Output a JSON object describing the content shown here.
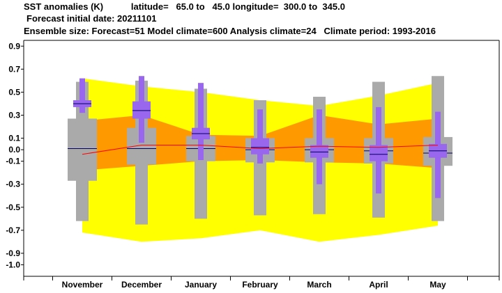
{
  "header": {
    "line1": "SST anomalies (K)           latitude=   65.0 to   45.0 longitude=  300.0 to  345.0",
    "line2": "Forecast initial date: 20211101",
    "line3": "Ensemble size: Forecast=51 Model climate=600 Analysis climate=24   Climate period: 1993-2016"
  },
  "colors": {
    "climate_outer": "#ffff00",
    "climate_inner": "#ff9900",
    "forecast_box": "#9966ee",
    "model_box": "#aaaaaa",
    "median_line": "#000066",
    "analysis_line": "#ff0000"
  },
  "chart_data": {
    "type": "box",
    "categories": [
      "November",
      "December",
      "January",
      "February",
      "March",
      "April",
      "May"
    ],
    "ylim": [
      -1.1,
      0.95
    ],
    "yticks": [
      "0.9",
      "0.7",
      "0.5",
      "0.3",
      "0.1",
      "0.0",
      "-0.1",
      "-0.3",
      "-0.5",
      "-0.7",
      "-0.9",
      "-1.0"
    ],
    "ytick_values": [
      0.9,
      0.7,
      0.5,
      0.3,
      0.1,
      0.0,
      -0.1,
      -0.3,
      -0.5,
      -0.7,
      -0.9,
      -1.0
    ],
    "climate_outer_band": {
      "upper": [
        0.62,
        0.55,
        0.5,
        0.43,
        0.38,
        0.47,
        0.58
      ],
      "lower": [
        -0.72,
        -0.8,
        -0.77,
        -0.7,
        -0.8,
        -0.74,
        -0.66
      ]
    },
    "climate_inner_band": {
      "upper": [
        0.25,
        0.3,
        0.13,
        0.12,
        0.3,
        0.22,
        0.27
      ],
      "lower": [
        -0.18,
        -0.14,
        -0.1,
        -0.09,
        -0.11,
        -0.12,
        -0.16
      ]
    },
    "analysis_line": [
      -0.04,
      0.04,
      0.04,
      0.01,
      0.03,
      0.02,
      0.04
    ],
    "model_climate": [
      {
        "whisker_low": -0.62,
        "q1": -0.27,
        "median": 0.01,
        "q3": 0.27,
        "whisker_high": 0.59
      },
      {
        "whisker_low": -0.65,
        "q1": -0.13,
        "median": 0.01,
        "q3": 0.19,
        "whisker_high": 0.6
      },
      {
        "whisker_low": -0.6,
        "q1": -0.1,
        "median": 0.01,
        "q3": 0.12,
        "whisker_high": 0.53
      },
      {
        "whisker_low": -0.57,
        "q1": -0.11,
        "median": 0.0,
        "q3": 0.1,
        "whisker_high": 0.43
      },
      {
        "whisker_low": -0.56,
        "q1": -0.11,
        "median": 0.0,
        "q3": 0.1,
        "whisker_high": 0.46
      },
      {
        "whisker_low": -0.59,
        "q1": -0.12,
        "median": -0.01,
        "q3": 0.1,
        "whisker_high": 0.59
      },
      {
        "whisker_low": -0.62,
        "q1": -0.14,
        "median": -0.03,
        "q3": 0.11,
        "whisker_high": 0.64
      }
    ],
    "forecast": [
      {
        "whisker_low": 0.32,
        "q1": 0.37,
        "median": 0.4,
        "q3": 0.43,
        "whisker_high": 0.62
      },
      {
        "whisker_low": 0.06,
        "q1": 0.27,
        "median": 0.34,
        "q3": 0.42,
        "whisker_high": 0.64
      },
      {
        "whisker_low": -0.09,
        "q1": 0.09,
        "median": 0.14,
        "q3": 0.19,
        "whisker_high": 0.58
      },
      {
        "whisker_low": -0.12,
        "q1": -0.04,
        "median": 0.02,
        "q3": 0.1,
        "whisker_high": 0.35
      },
      {
        "whisker_low": -0.3,
        "q1": -0.07,
        "median": -0.02,
        "q3": 0.04,
        "whisker_high": 0.35
      },
      {
        "whisker_low": -0.38,
        "q1": -0.1,
        "median": -0.04,
        "q3": 0.04,
        "whisker_high": 0.37
      },
      {
        "whisker_low": -0.42,
        "q1": -0.07,
        "median": -0.01,
        "q3": 0.05,
        "whisker_high": 0.33
      }
    ],
    "grid": false,
    "legend": "none"
  }
}
